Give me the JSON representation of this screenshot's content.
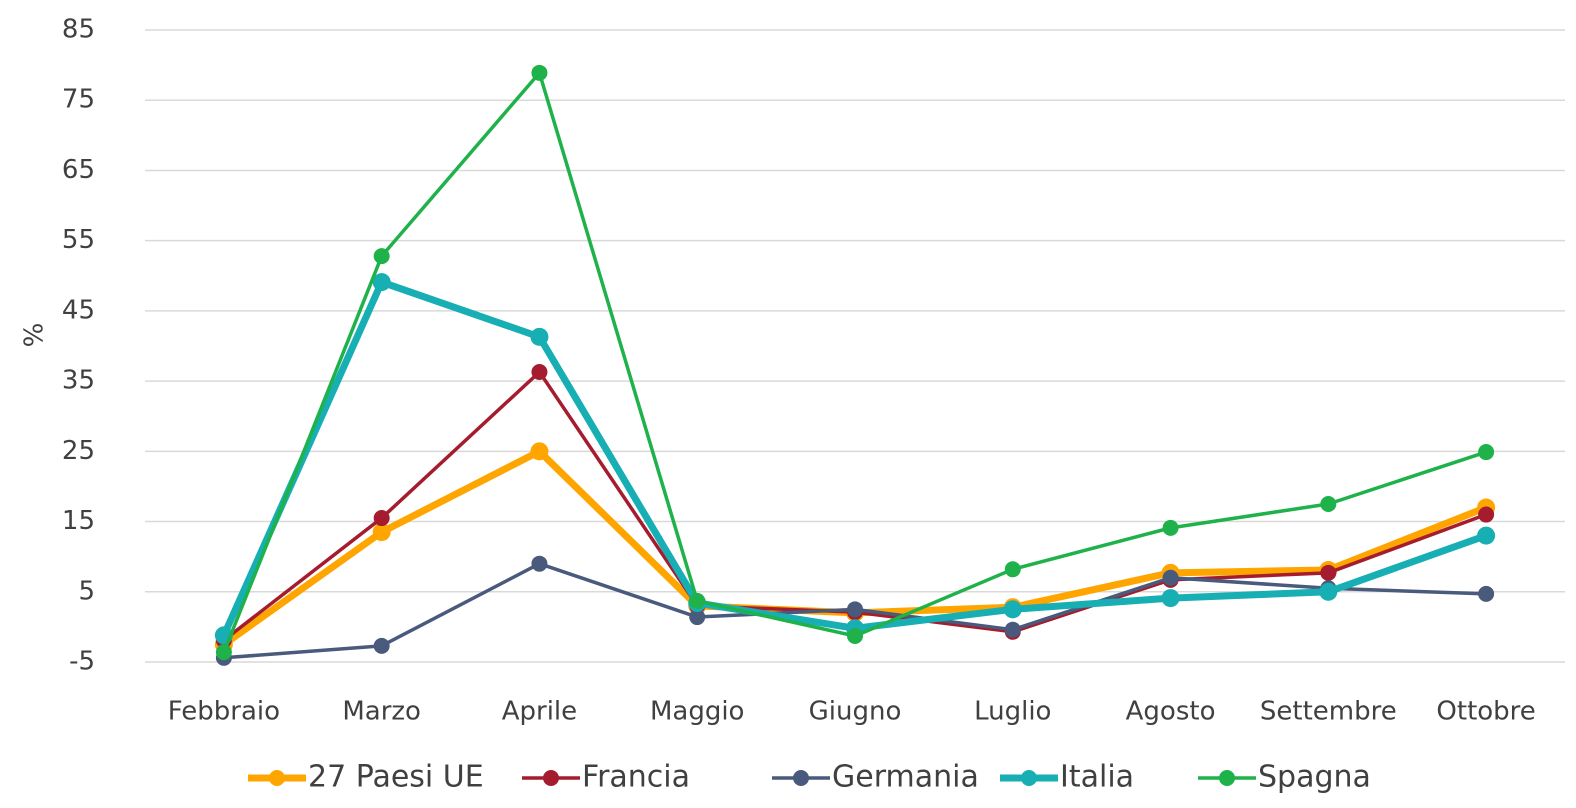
{
  "chart_data": {
    "type": "line",
    "y_label": "%",
    "categories": [
      "Febbraio",
      "Marzo",
      "Aprile",
      "Maggio",
      "Giugno",
      "Luglio",
      "Agosto",
      "Settembre",
      "Ottobre"
    ],
    "series": [
      {
        "name": "27 Paesi UE",
        "color": "#ffa500",
        "values": [
          -2.5,
          13.5,
          25,
          3,
          2,
          2.8,
          7.7,
          8.1,
          17
        ]
      },
      {
        "name": "Francia",
        "color": "#a51c2e",
        "values": [
          -1.9,
          15.5,
          36.3,
          3,
          2.1,
          -0.7,
          6.7,
          7.7,
          16
        ]
      },
      {
        "name": "Germania",
        "color": "#4a5a7c",
        "values": [
          -4.4,
          -2.7,
          9,
          1.4,
          2.5,
          -0.4,
          7,
          5.5,
          4.7
        ]
      },
      {
        "name": "Italia",
        "color": "#17aeb4",
        "values": [
          -1.2,
          49.1,
          41.3,
          3.4,
          -0.2,
          2.5,
          4.1,
          5,
          13
        ]
      },
      {
        "name": "Spagna",
        "color": "#1fb24a",
        "values": [
          -3.6,
          52.8,
          78.9,
          3.7,
          -1.3,
          8.2,
          14.1,
          17.5,
          24.9
        ]
      }
    ],
    "ylim": [
      -5,
      85
    ],
    "yticks": [
      -5,
      5,
      15,
      25,
      35,
      45,
      55,
      65,
      75,
      85
    ],
    "grid": true
  }
}
